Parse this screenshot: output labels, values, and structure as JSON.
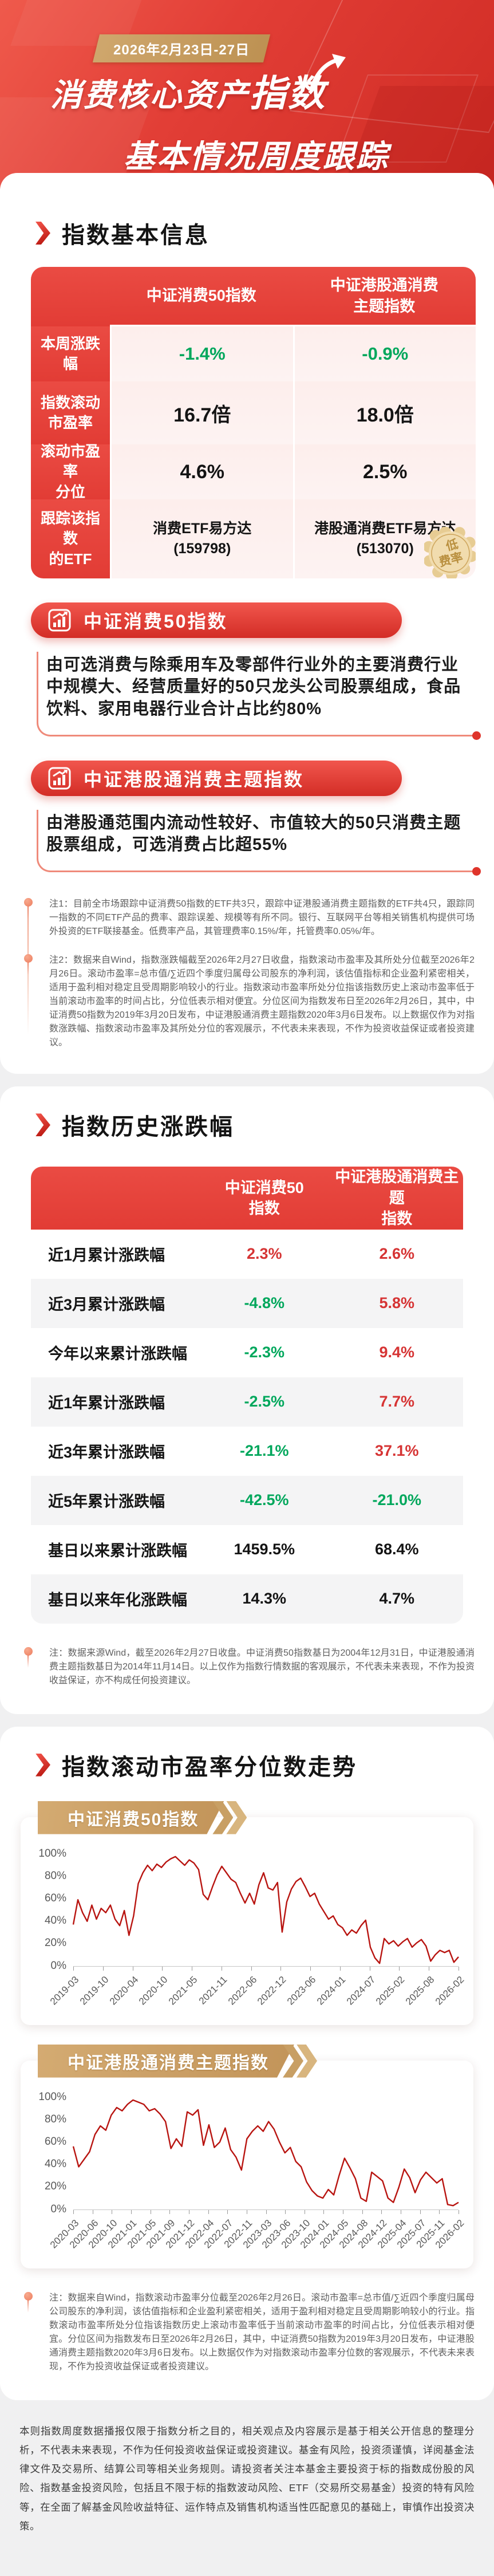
{
  "header": {
    "date_badge": "2026年2月23日-27日",
    "title_line1_a": "消费核心资产",
    "title_line1_b": "指数",
    "title_line2": "基本情况周度跟踪"
  },
  "basic": {
    "title": "指数基本信息",
    "table": {
      "col_headers": [
        "中证消费50指数",
        "中证港股通消费\n主题指数"
      ],
      "rows": [
        {
          "label": "本周涨跌幅",
          "values": [
            {
              "text": "-1.4%",
              "dir": "down"
            },
            {
              "text": "-0.9%",
              "dir": "down"
            }
          ]
        },
        {
          "label": "指数滚动\n市盈率",
          "values": [
            {
              "text": "16.7倍",
              "dir": "flat"
            },
            {
              "text": "18.0倍",
              "dir": "flat"
            }
          ]
        },
        {
          "label": "滚动市盈率\n分位",
          "values": [
            {
              "text": "4.6%",
              "dir": "flat"
            },
            {
              "text": "2.5%",
              "dir": "flat"
            }
          ]
        },
        {
          "label": "跟踪该指数\n的ETF",
          "values": [
            {
              "text": "消费ETF易方达",
              "sub": "(159798)"
            },
            {
              "text": "港股通消费ETF易方达",
              "sub": "(513070)"
            }
          ]
        }
      ],
      "seal": "低 费率"
    },
    "blocks": [
      {
        "title": "中证消费50指数",
        "desc": "由可选消费与除乘用车及零部件行业外的主要消费行业中规模大、经营质量好的50只龙头公司股票组成，食品饮料、家用电器行业合计占比约80%"
      },
      {
        "title": "中证港股通消费主题指数",
        "desc": "由港股通范围内流动性较好、市值较大的50只消费主题股票组成，可选消费占比超55%"
      }
    ],
    "note1": "注1：目前全市场跟踪中证消费50指数的ETF共3只，跟踪中证港股通消费主题指数的ETF共4只，跟踪同一指数的不同ETF产品的费率、跟踪误差、规模等有所不同。银行、互联网平台等相关销售机构提供可场外投资的ETF联接基金。低费率产品，其管理费率0.15%/年，托管费率0.05%/年。",
    "note2": "注2：数据来自Wind，指数涨跌幅截至2026年2月27日收盘，指数滚动市盈率及其所处分位截至2026年2月26日。滚动市盈率=总市值/∑近四个季度归属母公司股东的净利润，该估值指标和企业盈利紧密相关，适用于盈利相对稳定且受周期影响较小的行业。指数滚动市盈率所处分位指该指数历史上滚动市盈率低于当前滚动市盈率的时间占比，分位低表示相对便宜。分位区间为指数发布日至2026年2月26日，其中，中证消费50指数为2019年3月20日发布，中证港股通消费主题指数2020年3月6日发布。以上数据仅作为对指数涨跌幅、指数滚动市盈率及其所处分位的客观展示，不代表未来表现，不作为投资收益保证或者投资建议。"
  },
  "history": {
    "title": "指数历史涨跌幅",
    "table": {
      "col_headers": [
        "中证消费50\n指数",
        "中证港股通消费主题\n指数"
      ],
      "rows": [
        {
          "label": "近1月累计涨跌幅",
          "values": [
            {
              "text": "2.3%",
              "dir": "up"
            },
            {
              "text": "2.6%",
              "dir": "up"
            }
          ]
        },
        {
          "label": "近3月累计涨跌幅",
          "values": [
            {
              "text": "-4.8%",
              "dir": "down"
            },
            {
              "text": "5.8%",
              "dir": "up"
            }
          ]
        },
        {
          "label": "今年以来累计涨跌幅",
          "values": [
            {
              "text": "-2.3%",
              "dir": "down"
            },
            {
              "text": "9.4%",
              "dir": "up"
            }
          ]
        },
        {
          "label": "近1年累计涨跌幅",
          "values": [
            {
              "text": "-2.5%",
              "dir": "down"
            },
            {
              "text": "7.7%",
              "dir": "up"
            }
          ]
        },
        {
          "label": "近3年累计涨跌幅",
          "values": [
            {
              "text": "-21.1%",
              "dir": "down"
            },
            {
              "text": "37.1%",
              "dir": "up"
            }
          ]
        },
        {
          "label": "近5年累计涨跌幅",
          "values": [
            {
              "text": "-42.5%",
              "dir": "down"
            },
            {
              "text": "-21.0%",
              "dir": "down"
            }
          ]
        },
        {
          "label": "基日以来累计涨跌幅",
          "values": [
            {
              "text": "1459.5%",
              "dir": "flat"
            },
            {
              "text": "68.4%",
              "dir": "flat"
            }
          ]
        },
        {
          "label": "基日以来年化涨跌幅",
          "values": [
            {
              "text": "14.3%",
              "dir": "flat"
            },
            {
              "text": "4.7%",
              "dir": "flat"
            }
          ]
        }
      ]
    },
    "note": "注：数据来源Wind，截至2026年2月27日收盘。中证消费50指数基日为2004年12月31日，中证港股通消费主题指数基日为2014年11月14日。以上仅作为指数行情数据的客观展示，不代表未来表现，不作为投资收益保证，亦不构成任何投资建议。"
  },
  "pe_section": {
    "title": "指数滚动市盈率分位数走势",
    "note": "注：数据来自Wind，指数滚动市盈率分位截至2026年2月26日。滚动市盈率=总市值/∑近四个季度归属母公司股东的净利润，该估值指标和企业盈利紧密相关，适用于盈利相对稳定且受周期影响较小的行业。指数滚动市盈率所处分位指该指数历史上滚动市盈率低于当前滚动市盈率的时间占比，分位低表示相对便宜。分位区间为指数发布日至2026年2月26日，其中，中证消费50指数为2019年3月20日发布，中证港股通消费主题指数2020年3月6日发布。以上数据仅作为对指数滚动市盈率分位数的客观展示，不代表未来表现，不作为投资收益保证或者投资建议。"
  },
  "footer": {
    "text": "本则指数周度数据播报仅限于指数分析之目的，相关观点及内容展示是基于相关公开信息的整理分析，不代表未来表现，不作为任何投资收益保证或投资建议。基金有风险，投资须谨慎，详阅基金法律文件及交易所、结算公司等相关业务规则。请投资者关注本基金主要投资于标的指数成份股的风险、指数基金投资风险，包括且不限于标的指数波动风险、ETF（交易所交易基金）投资的特有风险等，在全面了解基金风险收益特征、运作特点及销售机构适当性匹配意见的基础上，审慎作出投资决策。"
  },
  "colors": {
    "accent_red": "#e23c35",
    "gold": "#c89b5e",
    "green_down": "#00a75c",
    "red_up": "#d63434",
    "chart_line": "#b81410"
  },
  "chart_data": [
    {
      "type": "line",
      "title": "中证消费50指数",
      "ylabel": "滚动市盈率历史分位",
      "ylim": [
        0,
        100
      ],
      "yticks": [
        "0%",
        "20%",
        "40%",
        "60%",
        "80%",
        "100%"
      ],
      "legend": [],
      "grid": false,
      "x": [
        "2019-03",
        "2019-04",
        "2019-05",
        "2019-06",
        "2019-07",
        "2019-08",
        "2019-09",
        "2019-10",
        "2019-11",
        "2019-12",
        "2020-01",
        "2020-02",
        "2020-03",
        "2020-04",
        "2020-05",
        "2020-06",
        "2020-07",
        "2020-08",
        "2020-09",
        "2020-10",
        "2020-11",
        "2020-12",
        "2021-01",
        "2021-02",
        "2021-03",
        "2021-04",
        "2021-05",
        "2021-06",
        "2021-07",
        "2021-08",
        "2021-09",
        "2021-10",
        "2021-11",
        "2021-12",
        "2022-01",
        "2022-02",
        "2022-03",
        "2022-04",
        "2022-05",
        "2022-06",
        "2022-07",
        "2022-08",
        "2022-09",
        "2022-10",
        "2022-11",
        "2022-12",
        "2023-01",
        "2023-02",
        "2023-03",
        "2023-04",
        "2023-05",
        "2023-06",
        "2023-07",
        "2023-08",
        "2023-09",
        "2023-10",
        "2023-11",
        "2023-12",
        "2024-01",
        "2024-02",
        "2024-03",
        "2024-04",
        "2024-05",
        "2024-06",
        "2024-07",
        "2024-08",
        "2024-09",
        "2024-10",
        "2024-11",
        "2024-12",
        "2025-01",
        "2025-02",
        "2025-03",
        "2025-04",
        "2025-05",
        "2025-06",
        "2025-07",
        "2025-08",
        "2025-09",
        "2025-10",
        "2025-11",
        "2025-12",
        "2026-01",
        "2026-02"
      ],
      "values": [
        37,
        60,
        48,
        40,
        55,
        42,
        52,
        48,
        55,
        42,
        36,
        50,
        27,
        45,
        75,
        85,
        92,
        87,
        93,
        90,
        95,
        98,
        100,
        96,
        92,
        97,
        94,
        88,
        65,
        60,
        72,
        83,
        91,
        85,
        79,
        76,
        66,
        57,
        66,
        56,
        74,
        85,
        71,
        69,
        76,
        30,
        58,
        70,
        77,
        80,
        72,
        63,
        66,
        56,
        49,
        42,
        45,
        37,
        34,
        27,
        32,
        29,
        36,
        41,
        16,
        6,
        1,
        24,
        19,
        22,
        17,
        21,
        24,
        16,
        20,
        23,
        17,
        3,
        9,
        13,
        11,
        13,
        2,
        7
      ],
      "xticks": [
        "2019-03",
        "2019-10",
        "2020-04",
        "2020-10",
        "2021-05",
        "2021-11",
        "2022-06",
        "2022-12",
        "2023-06",
        "2024-01",
        "2024-07",
        "2025-02",
        "2025-08",
        "2026-02"
      ]
    },
    {
      "type": "line",
      "title": "中证港股通消费主题指数",
      "ylabel": "滚动市盈率历史分位",
      "ylim": [
        0,
        100
      ],
      "yticks": [
        "0%",
        "20%",
        "40%",
        "60%",
        "80%",
        "100%"
      ],
      "legend": [],
      "grid": false,
      "x": [
        "2020-03",
        "2020-04",
        "2020-05",
        "2020-06",
        "2020-07",
        "2020-08",
        "2020-09",
        "2020-10",
        "2020-11",
        "2020-12",
        "2021-01",
        "2021-02",
        "2021-03",
        "2021-04",
        "2021-05",
        "2021-06",
        "2021-07",
        "2021-08",
        "2021-09",
        "2021-10",
        "2021-11",
        "2021-12",
        "2022-01",
        "2022-02",
        "2022-03",
        "2022-04",
        "2022-05",
        "2022-06",
        "2022-07",
        "2022-08",
        "2022-09",
        "2022-10",
        "2022-11",
        "2022-12",
        "2023-01",
        "2023-02",
        "2023-03",
        "2023-04",
        "2023-05",
        "2023-06",
        "2023-07",
        "2023-08",
        "2023-09",
        "2023-10",
        "2023-11",
        "2023-12",
        "2024-01",
        "2024-02",
        "2024-03",
        "2024-04",
        "2024-05",
        "2024-06",
        "2024-07",
        "2024-08",
        "2024-09",
        "2024-10",
        "2024-11",
        "2024-12",
        "2025-01",
        "2025-02",
        "2025-03",
        "2025-04",
        "2025-05",
        "2025-06",
        "2025-07",
        "2025-08",
        "2025-09",
        "2025-10",
        "2025-11",
        "2025-12",
        "2026-01",
        "2026-02"
      ],
      "values": [
        57,
        38,
        45,
        52,
        68,
        76,
        72,
        86,
        93,
        90,
        96,
        100,
        98,
        96,
        90,
        92,
        87,
        80,
        55,
        64,
        57,
        89,
        86,
        91,
        58,
        77,
        56,
        61,
        74,
        54,
        47,
        35,
        64,
        71,
        76,
        71,
        80,
        73,
        61,
        51,
        56,
        43,
        38,
        24,
        16,
        11,
        9,
        17,
        12,
        30,
        46,
        37,
        27,
        9,
        6,
        33,
        29,
        25,
        9,
        5,
        19,
        36,
        28,
        14,
        26,
        33,
        28,
        23,
        27,
        3,
        2,
        5
      ],
      "xticks": [
        "2020-03",
        "2020-06",
        "2020-10",
        "2021-01",
        "2021-05",
        "2021-09",
        "2021-12",
        "2022-04",
        "2022-07",
        "2022-11",
        "2023-03",
        "2023-06",
        "2023-10",
        "2024-01",
        "2024-05",
        "2024-08",
        "2024-12",
        "2025-04",
        "2025-07",
        "2025-11",
        "2026-02"
      ]
    }
  ]
}
